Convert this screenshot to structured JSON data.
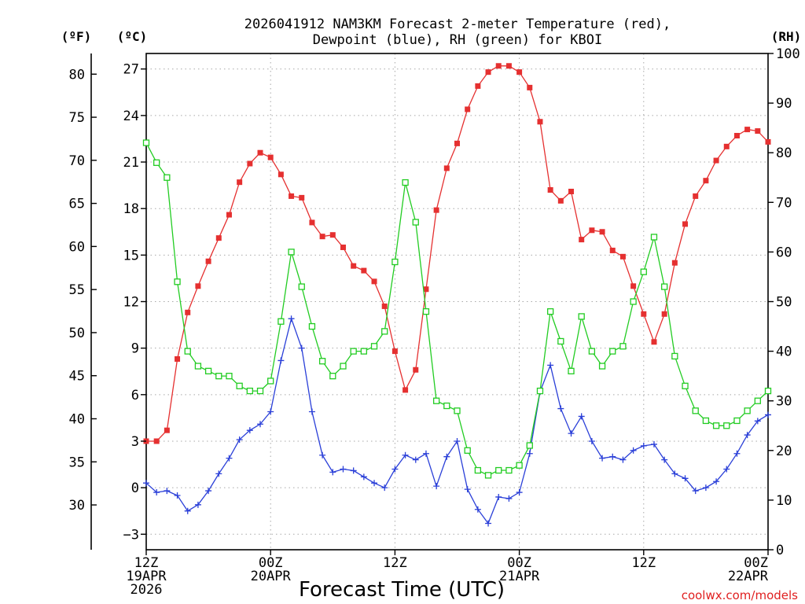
{
  "chart_data": {
    "type": "line",
    "title_line1": "2026041912 NAM3KM Forecast 2-meter Temperature (red),",
    "title_line2": "Dewpoint (blue), RH (green) for KBOI",
    "xlabel": "Forecast Time (UTC)",
    "credit": "coolwx.com/models",
    "units": {
      "fahrenheit": "(ºF)",
      "celsius": "(ºC)",
      "rh": "(RH)"
    },
    "x_ticks": [
      {
        "hour": 0,
        "lines": [
          "12Z",
          "19APR",
          "2026"
        ]
      },
      {
        "hour": 12,
        "lines": [
          "00Z",
          "20APR"
        ]
      },
      {
        "hour": 24,
        "lines": [
          "12Z"
        ]
      },
      {
        "hour": 36,
        "lines": [
          "00Z",
          "21APR"
        ]
      },
      {
        "hour": 48,
        "lines": [
          "12Z"
        ]
      },
      {
        "hour": 60,
        "lines": [
          "00Z",
          "22APR"
        ]
      }
    ],
    "xlim": [
      0,
      60
    ],
    "celsius_axis": {
      "ylim": [
        -4,
        28
      ],
      "ticks": [
        -3,
        0,
        3,
        6,
        9,
        12,
        15,
        18,
        21,
        24,
        27
      ],
      "labels": [
        "−3",
        "0",
        "3",
        "6",
        "9",
        "12",
        "15",
        "18",
        "21",
        "24",
        "27"
      ]
    },
    "fahrenheit_axis": {
      "ticks": [
        30,
        35,
        40,
        45,
        50,
        55,
        60,
        65,
        70,
        75,
        80
      ],
      "labels": [
        "30",
        "35",
        "40",
        "45",
        "50",
        "55",
        "60",
        "65",
        "70",
        "75",
        "80"
      ]
    },
    "rh_axis": {
      "ylim": [
        0,
        100
      ],
      "ticks": [
        0,
        10,
        20,
        30,
        40,
        50,
        60,
        70,
        80,
        90,
        100
      ],
      "labels": [
        "0",
        "10",
        "20",
        "30",
        "40",
        "50",
        "60",
        "70",
        "80",
        "90",
        "100"
      ]
    },
    "series": [
      {
        "name": "2-meter Temperature",
        "unit": "C",
        "color": "#e53030",
        "marker": "filled-square",
        "values": [
          3.0,
          3.0,
          3.7,
          8.3,
          11.3,
          13.0,
          14.6,
          16.1,
          17.6,
          19.7,
          20.9,
          21.6,
          21.3,
          20.2,
          18.8,
          18.7,
          17.1,
          16.2,
          16.3,
          15.5,
          14.3,
          14.0,
          13.3,
          11.7,
          8.8,
          6.3,
          7.6,
          12.8,
          17.9,
          20.6,
          22.2,
          24.4,
          25.9,
          26.8,
          27.2,
          27.2,
          26.8,
          25.8,
          23.6,
          19.2,
          18.5,
          19.1,
          16.0,
          16.6,
          16.5,
          15.3,
          14.9,
          13.0,
          11.2,
          9.4,
          11.2,
          14.5,
          17.0,
          18.8,
          19.8,
          21.1,
          22.0,
          22.7,
          23.1,
          23.0,
          22.3
        ]
      },
      {
        "name": "Dewpoint",
        "unit": "C",
        "color": "#2a3fd8",
        "marker": "plus",
        "values": [
          0.3,
          -0.3,
          -0.2,
          -0.5,
          -1.5,
          -1.1,
          -0.2,
          0.9,
          1.9,
          3.1,
          3.7,
          4.1,
          4.9,
          8.2,
          10.9,
          9.0,
          4.9,
          2.1,
          1.0,
          1.2,
          1.1,
          0.7,
          0.3,
          0.0,
          1.2,
          2.1,
          1.8,
          2.2,
          0.1,
          2.0,
          3.0,
          -0.1,
          -1.4,
          -2.3,
          -0.6,
          -0.7,
          -0.3,
          2.2,
          6.2,
          7.9,
          5.1,
          3.5,
          4.6,
          3.0,
          1.9,
          2.0,
          1.8,
          2.4,
          2.7,
          2.8,
          1.8,
          0.9,
          0.6,
          -0.2,
          0.0,
          0.4,
          1.2,
          2.2,
          3.4,
          4.3,
          4.7
        ]
      },
      {
        "name": "RH",
        "unit": "%",
        "color": "#22cc22",
        "marker": "open-square",
        "values": [
          82,
          78,
          75,
          54,
          40,
          37,
          36,
          35,
          35,
          33,
          32,
          32,
          34,
          46,
          60,
          53,
          45,
          38,
          35,
          37,
          40,
          40,
          41,
          44,
          58,
          74,
          66,
          48,
          30,
          29,
          28,
          20,
          16,
          15,
          16,
          16,
          17,
          21,
          32,
          48,
          42,
          36,
          47,
          40,
          37,
          40,
          41,
          50,
          56,
          63,
          53,
          39,
          33,
          28,
          26,
          25,
          25,
          26,
          28,
          30,
          32
        ]
      }
    ]
  }
}
